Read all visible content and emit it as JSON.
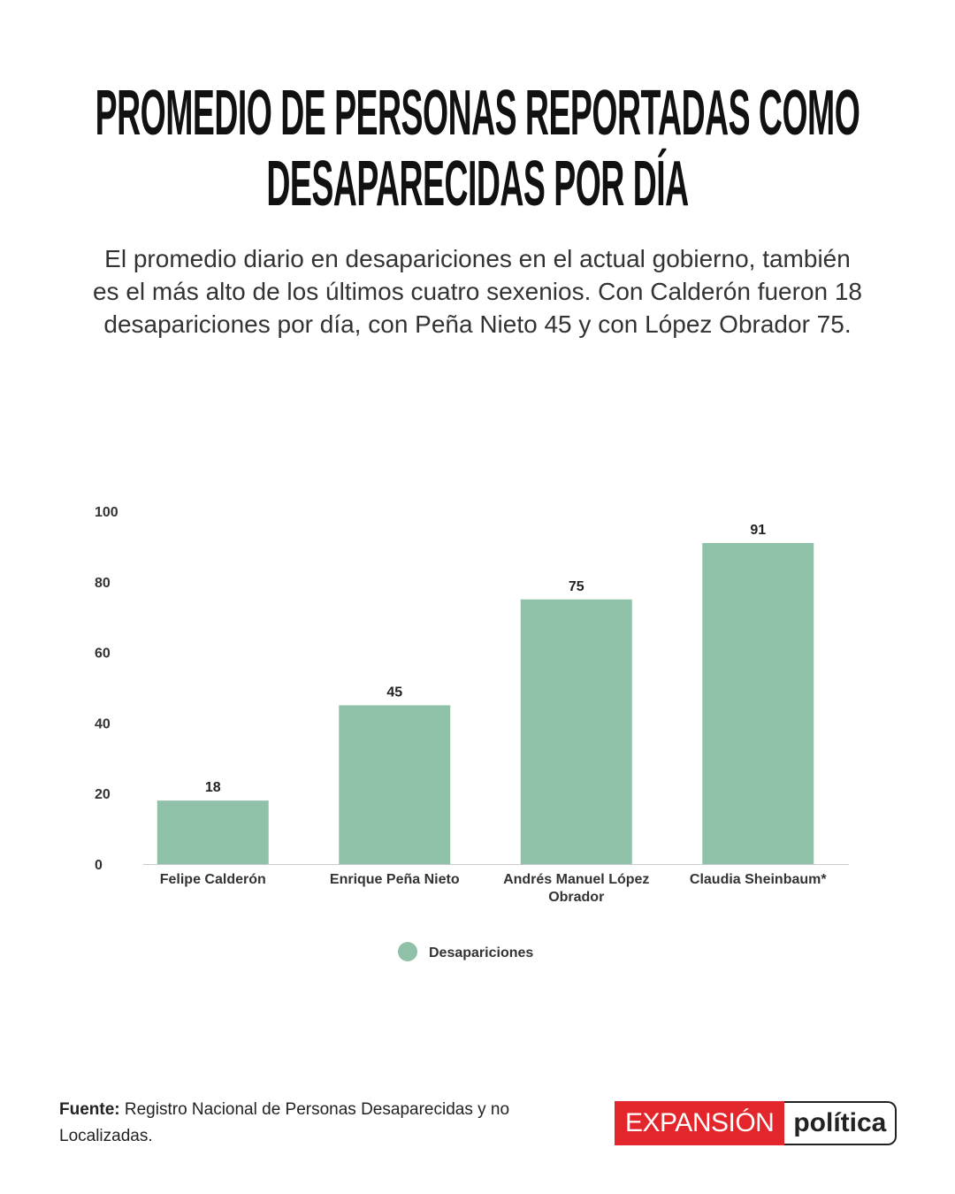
{
  "chart_data": {
    "type": "bar",
    "title": "PROMEDIO DE PERSONAS REPORTADAS COMO DESAPARECIDAS POR DÍA",
    "subtitle": "El promedio diario en desapariciones en el actual gobierno, también es el más alto de los últimos cuatro sexenios. Con Calderón fueron 18 desapariciones por día, con Peña Nieto 45 y con López Obrador 75.",
    "categories": [
      "Felipe Calderón",
      "Enrique Peña Nieto",
      "Andrés Manuel López Obrador",
      "Claudia Sheinbaum*"
    ],
    "series": [
      {
        "name": "Desapariciones",
        "color": "#8fc1a9",
        "values": [
          18,
          45,
          75,
          91
        ]
      }
    ],
    "ylim": [
      0,
      100
    ],
    "yticks": [
      0,
      20,
      40,
      60,
      80,
      100
    ],
    "grid": false,
    "legend": "bottom"
  },
  "footer": {
    "label": "Fuente:",
    "text": "Registro Nacional de Personas Desaparecidas y no Localizadas."
  },
  "logo": {
    "left": "EXPANSIÓN",
    "right": "política"
  }
}
